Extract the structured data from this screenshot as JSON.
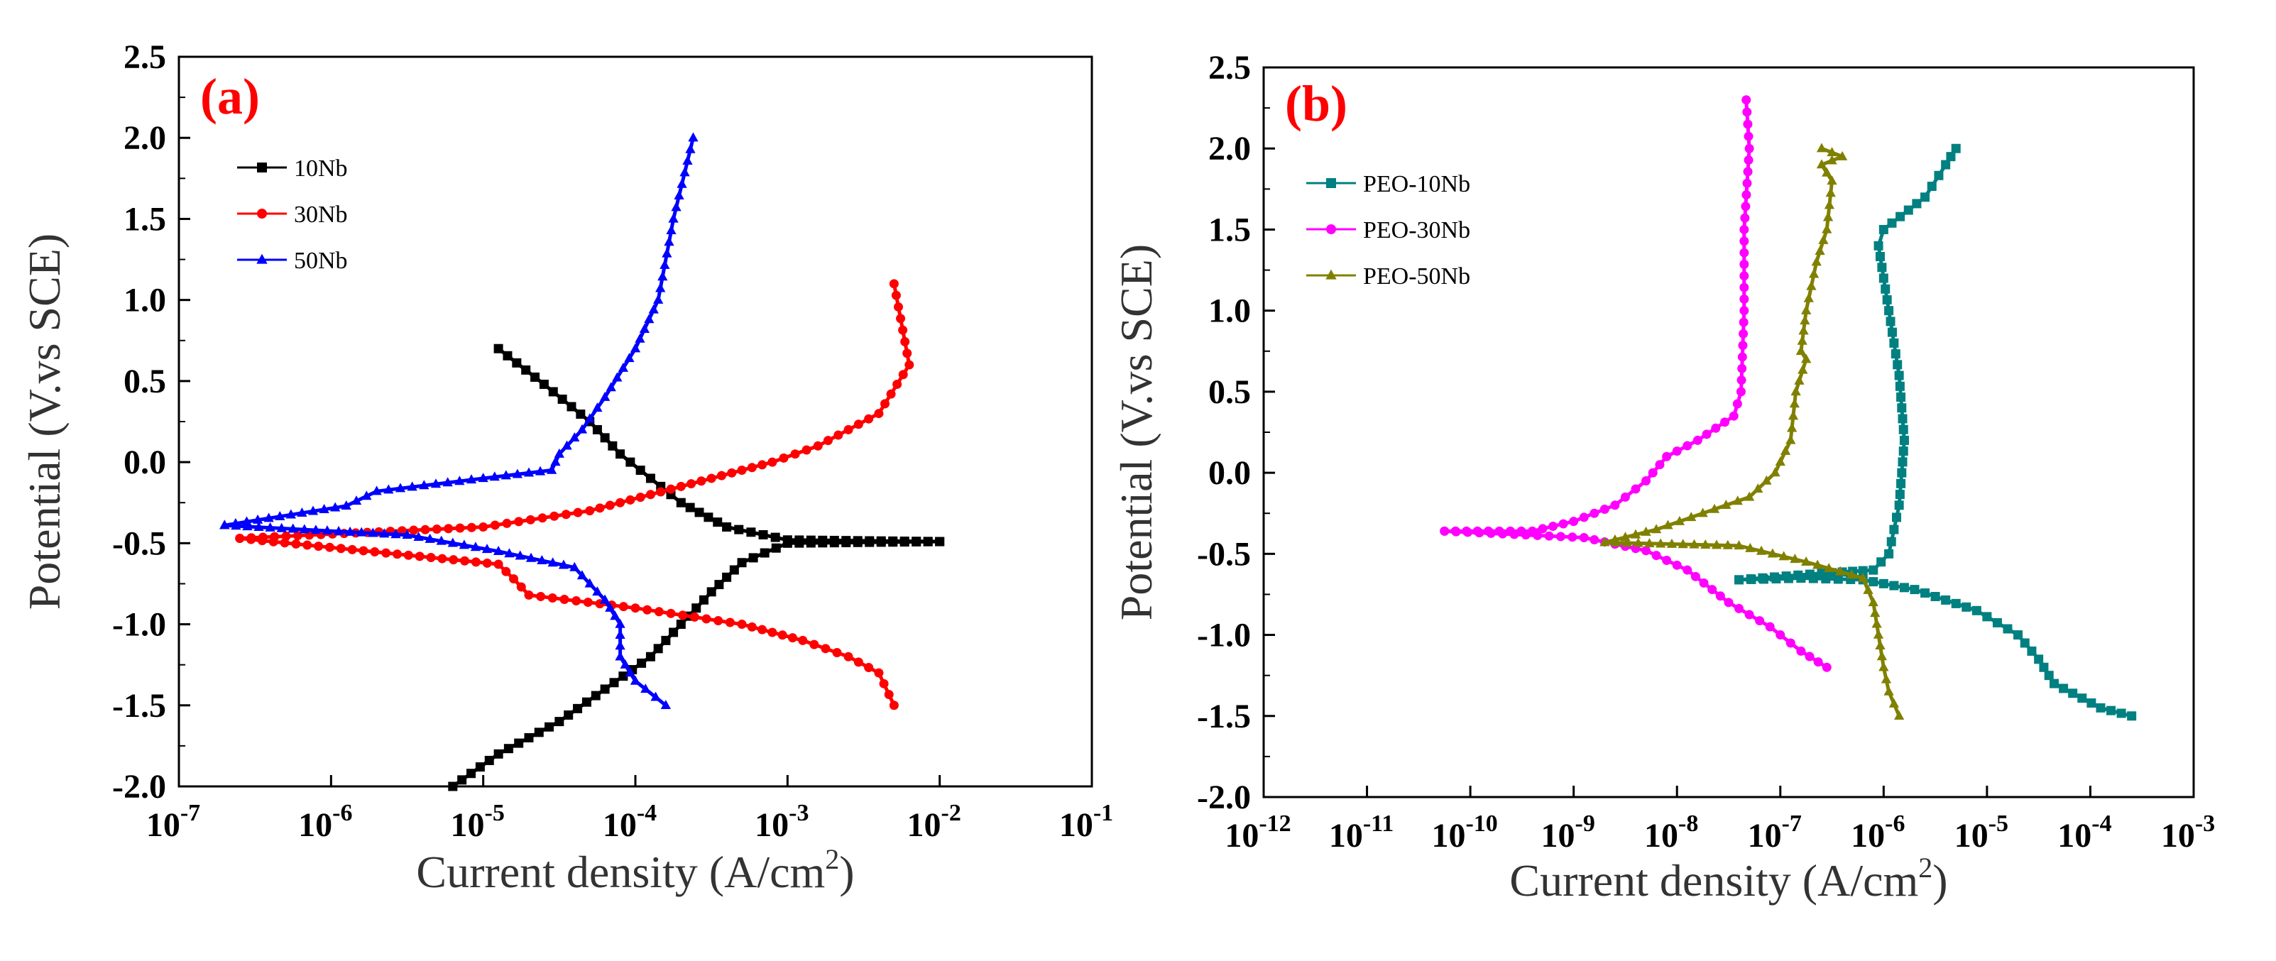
{
  "chart_data": [
    {
      "type": "line",
      "panel_label": "(a)",
      "xlabel": "Current density (A/cm",
      "xlabel_sup": "2",
      "xlabel_end": ")",
      "ylabel": "Potential (V.vs SCE)",
      "xscale": "log",
      "xlim_exp": [
        -7,
        -1
      ],
      "ylim": [
        -2.0,
        2.5
      ],
      "x_ticks": [
        {
          "base": "10",
          "exp": "-7"
        },
        {
          "base": "10",
          "exp": "-6"
        },
        {
          "base": "10",
          "exp": "-5"
        },
        {
          "base": "10",
          "exp": "-4"
        },
        {
          "base": "10",
          "exp": "-3"
        },
        {
          "base": "10",
          "exp": "-2"
        },
        {
          "base": "10",
          "exp": "-1"
        }
      ],
      "y_ticks": [
        "2.5",
        "2.0",
        "1.5",
        "1.0",
        "0.5",
        "0.0",
        "-0.5",
        "-1.0",
        "-1.5",
        "-2.0"
      ],
      "legend_position": "top-left",
      "series": [
        {
          "name": "10Nb",
          "color": "#000000",
          "marker": "square",
          "cathodic": [
            [
              -2.0,
              -0.49
            ],
            [
              -3.0,
              -0.5
            ],
            [
              -3.3,
              -0.62
            ],
            [
              -3.5,
              -0.8
            ],
            [
              -3.7,
              -1.0
            ],
            [
              -3.9,
              -1.2
            ],
            [
              -4.2,
              -1.4
            ],
            [
              -4.5,
              -1.6
            ],
            [
              -4.9,
              -1.8
            ],
            [
              -5.2,
              -2.0
            ]
          ],
          "anodic": [
            [
              -2.0,
              -0.49
            ],
            [
              -3.0,
              -0.48
            ],
            [
              -3.4,
              -0.4
            ],
            [
              -3.7,
              -0.25
            ],
            [
              -3.9,
              -0.1
            ],
            [
              -4.1,
              0.05
            ],
            [
              -4.3,
              0.25
            ],
            [
              -4.6,
              0.48
            ],
            [
              -4.9,
              0.7
            ]
          ]
        },
        {
          "name": "30Nb",
          "color": "#ff0000",
          "marker": "circle",
          "cathodic": [
            [
              -6.6,
              -0.47
            ],
            [
              -4.9,
              -0.63
            ],
            [
              -4.8,
              -0.72
            ],
            [
              -4.7,
              -0.82
            ],
            [
              -4.0,
              -0.9
            ],
            [
              -3.3,
              -1.0
            ],
            [
              -2.9,
              -1.1
            ],
            [
              -2.6,
              -1.2
            ],
            [
              -2.4,
              -1.3
            ],
            [
              -2.3,
              -1.5
            ]
          ],
          "anodic": [
            [
              -6.6,
              -0.47
            ],
            [
              -5.0,
              -0.4
            ],
            [
              -4.3,
              -0.3
            ],
            [
              -3.9,
              -0.2
            ],
            [
              -3.5,
              -0.1
            ],
            [
              -3.1,
              0.0
            ],
            [
              -2.8,
              0.1
            ],
            [
              -2.4,
              0.3
            ],
            [
              -2.2,
              0.6
            ],
            [
              -2.3,
              1.1
            ]
          ]
        },
        {
          "name": "50Nb",
          "color": "#0000ff",
          "marker": "triangle",
          "cathodic": [
            [
              -6.7,
              -0.39
            ],
            [
              -5.5,
              -0.45
            ],
            [
              -4.9,
              -0.55
            ],
            [
              -4.4,
              -0.65
            ],
            [
              -4.2,
              -0.85
            ],
            [
              -4.1,
              -1.0
            ],
            [
              -4.1,
              -1.2
            ],
            [
              -4.0,
              -1.35
            ],
            [
              -3.8,
              -1.5
            ]
          ],
          "anodic": [
            [
              -6.7,
              -0.39
            ],
            [
              -5.9,
              -0.27
            ],
            [
              -5.7,
              -0.18
            ],
            [
              -5.0,
              -0.1
            ],
            [
              -4.55,
              -0.05
            ],
            [
              -4.5,
              0.05
            ],
            [
              -4.35,
              0.2
            ],
            [
              -4.2,
              0.4
            ],
            [
              -4.0,
              0.7
            ],
            [
              -3.85,
              1.0
            ],
            [
              -3.75,
              1.5
            ],
            [
              -3.62,
              2.0
            ]
          ]
        }
      ]
    },
    {
      "type": "line",
      "panel_label": "(b)",
      "xlabel": "Current density (A/cm",
      "xlabel_sup": "2",
      "xlabel_end": ")",
      "ylabel": "Potential (V.vs SCE)",
      "xscale": "log",
      "xlim_exp": [
        -12,
        -3
      ],
      "ylim": [
        -2.0,
        2.5
      ],
      "x_ticks": [
        {
          "base": "10",
          "exp": "-12"
        },
        {
          "base": "10",
          "exp": "-11"
        },
        {
          "base": "10",
          "exp": "-10"
        },
        {
          "base": "10",
          "exp": "-9"
        },
        {
          "base": "10",
          "exp": "-8"
        },
        {
          "base": "10",
          "exp": "-7"
        },
        {
          "base": "10",
          "exp": "-6"
        },
        {
          "base": "10",
          "exp": "-5"
        },
        {
          "base": "10",
          "exp": "-4"
        },
        {
          "base": "10",
          "exp": "-3"
        }
      ],
      "y_ticks": [
        "2.5",
        "2.0",
        "1.5",
        "1.0",
        "0.5",
        "0.0",
        "-0.5",
        "-1.0",
        "-1.5",
        "-2.0"
      ],
      "legend_position": "top-left",
      "series": [
        {
          "name": "PEO-10Nb",
          "color": "#008080",
          "marker": "square",
          "cathodic": [
            [
              -7.4,
              -0.66
            ],
            [
              -6.8,
              -0.65
            ],
            [
              -6.2,
              -0.66
            ],
            [
              -5.7,
              -0.72
            ],
            [
              -5.1,
              -0.85
            ],
            [
              -4.7,
              -1.0
            ],
            [
              -4.5,
              -1.15
            ],
            [
              -4.35,
              -1.3
            ],
            [
              -3.9,
              -1.45
            ],
            [
              -3.6,
              -1.5
            ]
          ],
          "anodic": [
            [
              -7.4,
              -0.66
            ],
            [
              -6.6,
              -0.62
            ],
            [
              -6.1,
              -0.6
            ],
            [
              -5.95,
              -0.5
            ],
            [
              -5.85,
              -0.2
            ],
            [
              -5.8,
              0.2
            ],
            [
              -5.85,
              0.6
            ],
            [
              -5.95,
              1.0
            ],
            [
              -6.05,
              1.4
            ],
            [
              -6.0,
              1.5
            ],
            [
              -5.6,
              1.7
            ],
            [
              -5.4,
              1.9
            ],
            [
              -5.3,
              2.0
            ]
          ]
        },
        {
          "name": "PEO-30Nb",
          "color": "#ff00ff",
          "marker": "circle",
          "cathodic": [
            [
              -10.25,
              -0.36
            ],
            [
              -8.9,
              -0.4
            ],
            [
              -8.3,
              -0.48
            ],
            [
              -7.9,
              -0.6
            ],
            [
              -7.5,
              -0.8
            ],
            [
              -7.1,
              -0.95
            ],
            [
              -6.8,
              -1.1
            ],
            [
              -6.55,
              -1.2
            ]
          ],
          "anodic": [
            [
              -10.25,
              -0.36
            ],
            [
              -9.4,
              -0.36
            ],
            [
              -9.0,
              -0.3
            ],
            [
              -8.6,
              -0.2
            ],
            [
              -8.3,
              -0.05
            ],
            [
              -8.1,
              0.1
            ],
            [
              -7.8,
              0.2
            ],
            [
              -7.45,
              0.35
            ],
            [
              -7.38,
              0.5
            ],
            [
              -7.35,
              1.0
            ],
            [
              -7.35,
              1.5
            ],
            [
              -7.3,
              2.0
            ],
            [
              -7.33,
              2.3
            ]
          ]
        },
        {
          "name": "PEO-50Nb",
          "color": "#808000",
          "marker": "triangle",
          "cathodic": [
            [
              -8.7,
              -0.43
            ],
            [
              -7.4,
              -0.45
            ],
            [
              -6.75,
              -0.55
            ],
            [
              -6.2,
              -0.65
            ],
            [
              -6.1,
              -0.8
            ],
            [
              -6.05,
              -1.0
            ],
            [
              -6.0,
              -1.2
            ],
            [
              -5.95,
              -1.35
            ],
            [
              -5.85,
              -1.5
            ]
          ],
          "anodic": [
            [
              -8.7,
              -0.43
            ],
            [
              -8.2,
              -0.35
            ],
            [
              -7.75,
              -0.25
            ],
            [
              -7.3,
              -0.15
            ],
            [
              -7.05,
              0.0
            ],
            [
              -6.9,
              0.2
            ],
            [
              -6.85,
              0.5
            ],
            [
              -6.75,
              0.7
            ],
            [
              -6.8,
              0.75
            ],
            [
              -6.75,
              1.0
            ],
            [
              -6.65,
              1.3
            ],
            [
              -6.55,
              1.5
            ],
            [
              -6.5,
              1.8
            ],
            [
              -6.6,
              1.9
            ],
            [
              -6.4,
              1.95
            ],
            [
              -6.6,
              2.0
            ]
          ]
        }
      ]
    }
  ]
}
